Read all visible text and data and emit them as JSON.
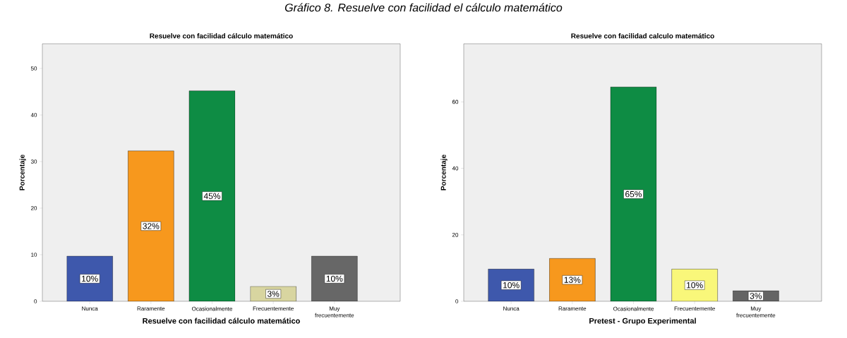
{
  "chart_data": [
    {
      "type": "bar",
      "title": "Resuelve con facilidad cálculo matemático",
      "xlabel": "Resuelve con facilidad cálculo matemático",
      "ylabel": "Porcentaje",
      "annotations": [
        "Gráfico 8. Resuelve con facilidad el cálculo matemático"
      ],
      "categories": [
        "Nunca",
        "Raramente",
        "Ocasionalmente",
        "Frecuentemente",
        "Muy frecuentemente"
      ],
      "values": [
        9.7,
        32.3,
        45.2,
        3.2,
        9.7
      ],
      "value_labels": [
        "10%",
        "32%",
        "45%",
        "3%",
        "10%"
      ],
      "colors": [
        "#3e58ac",
        "#f7981d",
        "#0e8c44",
        "#d8d5a0",
        "#676767"
      ],
      "ylim": [
        0,
        55.3
      ],
      "yticks": [
        0,
        10,
        20,
        30,
        40,
        50
      ]
    },
    {
      "type": "bar",
      "title": "Resuelve con facilidad calculo matemático",
      "xlabel": "Pretest - Grupo Experimental",
      "ylabel": "Porcentaje",
      "categories": [
        "Nunca",
        "Raramente",
        "Ocasionalmente",
        "Frecuentemente",
        "Muy frecuentemente"
      ],
      "values": [
        9.7,
        12.9,
        64.5,
        9.7,
        3.2
      ],
      "value_labels": [
        "10%",
        "13%",
        "65%",
        "10%",
        "3%"
      ],
      "colors": [
        "#3e58ac",
        "#f7981d",
        "#0e8c44",
        "#f9f77a",
        "#646464"
      ],
      "ylim": [
        0,
        77.5
      ],
      "yticks": [
        0,
        20,
        40,
        60
      ]
    }
  ]
}
